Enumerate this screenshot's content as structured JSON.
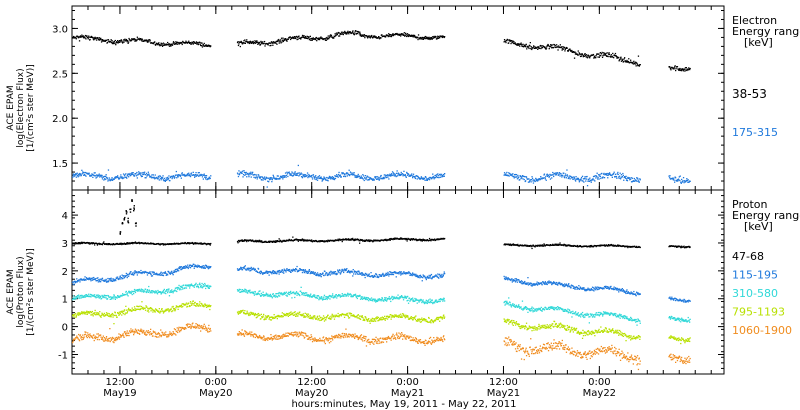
{
  "chart_data": [
    {
      "type": "scatter",
      "ylabel_lines": [
        "ACE EPAM",
        "log(Electron Flux)",
        "[1/(cm²s ster MeV)]"
      ],
      "ylim": [
        1.2,
        3.25
      ],
      "yticks": [
        "1.5",
        "2.0",
        "2.5",
        "3.0"
      ],
      "legend_title_lines": [
        "Electron",
        "Energy ranges",
        "[keV]"
      ],
      "legend_placement": "right",
      "series": [
        {
          "name": "38-53",
          "color": "#000000",
          "segments": [
            {
              "x": [
                0.0,
                0.72
              ],
              "level": 2.9,
              "slope": -0.08,
              "noise": 0.03
            },
            {
              "x": [
                0.86,
                1.5
              ],
              "level": 2.83,
              "slope": 0.12,
              "noise": 0.035
            },
            {
              "x": [
                1.5,
                1.94
              ],
              "level": 2.93,
              "slope": -0.02,
              "noise": 0.03
            },
            {
              "x": [
                2.25,
                2.5
              ],
              "level": 2.85,
              "slope": -0.06,
              "noise": 0.035
            },
            {
              "x": [
                2.5,
                2.96
              ],
              "level": 2.79,
              "slope": -0.16,
              "noise": 0.04
            },
            {
              "x": [
                3.11,
                3.22
              ],
              "level": 2.56,
              "slope": 0.02,
              "noise": 0.04
            }
          ]
        },
        {
          "name": "175-315",
          "color": "#1e78dc",
          "segments": [
            {
              "x": [
                0.0,
                0.72
              ],
              "level": 1.36,
              "slope": 0.0,
              "noise": 0.045
            },
            {
              "x": [
                0.86,
                1.94
              ],
              "level": 1.36,
              "slope": 0.0,
              "noise": 0.045
            },
            {
              "x": [
                2.25,
                2.96
              ],
              "level": 1.35,
              "slope": 0.0,
              "noise": 0.05
            },
            {
              "x": [
                3.11,
                3.22
              ],
              "level": 1.33,
              "slope": 0.0,
              "noise": 0.05
            }
          ]
        }
      ]
    },
    {
      "type": "scatter",
      "ylabel_lines": [
        "ACE EPAM",
        "log(Proton Flux)",
        "[1/(cm²s ster MeV)]"
      ],
      "ylim": [
        -1.7,
        4.9
      ],
      "yticks": [
        "-1",
        "0",
        "1",
        "2",
        "3",
        "4"
      ],
      "legend_title_lines": [
        "Proton",
        "Energy ranges",
        "[keV]"
      ],
      "legend_placement": "right",
      "series": [
        {
          "name": "47-68",
          "color": "#000000",
          "segments": [
            {
              "x": [
                0.0,
                0.72
              ],
              "level": 3.0,
              "slope": 0.0,
              "noise": 0.04
            },
            {
              "x": [
                0.86,
                1.94
              ],
              "level": 3.08,
              "slope": 0.08,
              "noise": 0.05
            },
            {
              "x": [
                2.25,
                2.96
              ],
              "level": 2.95,
              "slope": -0.05,
              "noise": 0.04
            },
            {
              "x": [
                3.11,
                3.22
              ],
              "level": 2.9,
              "slope": 0.0,
              "noise": 0.04
            }
          ]
        },
        {
          "name": "115-195",
          "color": "#1e78dc",
          "segments": [
            {
              "x": [
                0.0,
                0.72
              ],
              "level": 1.6,
              "slope": 0.6,
              "noise": 0.12
            },
            {
              "x": [
                0.86,
                1.94
              ],
              "level": 2.05,
              "slope": -0.2,
              "noise": 0.12
            },
            {
              "x": [
                2.25,
                2.96
              ],
              "level": 1.7,
              "slope": -0.45,
              "noise": 0.1
            },
            {
              "x": [
                3.11,
                3.22
              ],
              "level": 1.0,
              "slope": 0.0,
              "noise": 0.1
            }
          ]
        },
        {
          "name": "310-580",
          "color": "#30d8d8",
          "segments": [
            {
              "x": [
                0.0,
                0.72
              ],
              "level": 1.0,
              "slope": 0.5,
              "noise": 0.12
            },
            {
              "x": [
                0.86,
                1.94
              ],
              "level": 1.25,
              "slope": -0.3,
              "noise": 0.12
            },
            {
              "x": [
                2.25,
                2.96
              ],
              "level": 0.8,
              "slope": -0.5,
              "noise": 0.12
            },
            {
              "x": [
                3.11,
                3.22
              ],
              "level": 0.3,
              "slope": 0.0,
              "noise": 0.1
            }
          ]
        },
        {
          "name": "795-1193",
          "color": "#b8e000",
          "segments": [
            {
              "x": [
                0.0,
                0.72
              ],
              "level": 0.4,
              "slope": 0.4,
              "noise": 0.14
            },
            {
              "x": [
                0.86,
                1.94
              ],
              "level": 0.45,
              "slope": -0.15,
              "noise": 0.14
            },
            {
              "x": [
                2.25,
                2.96
              ],
              "level": 0.15,
              "slope": -0.45,
              "noise": 0.15
            },
            {
              "x": [
                3.11,
                3.22
              ],
              "level": -0.4,
              "slope": 0.0,
              "noise": 0.12
            }
          ]
        },
        {
          "name": "1060-1900",
          "color": "#f08c1e",
          "segments": [
            {
              "x": [
                0.0,
                0.72
              ],
              "level": -0.45,
              "slope": 0.45,
              "noise": 0.18
            },
            {
              "x": [
                0.86,
                1.94
              ],
              "level": -0.3,
              "slope": -0.15,
              "noise": 0.16
            },
            {
              "x": [
                2.25,
                2.96
              ],
              "level": -0.65,
              "slope": -0.35,
              "noise": 0.25
            },
            {
              "x": [
                3.11,
                3.22
              ],
              "level": -1.1,
              "slope": 0.0,
              "noise": 0.2
            }
          ]
        }
      ],
      "spike": {
        "series": "47-68",
        "x": [
          0.25,
          0.33
        ],
        "points": [
          [
            0.25,
            3.4
          ],
          [
            0.26,
            3.7
          ],
          [
            0.27,
            3.9
          ],
          [
            0.28,
            4.1
          ],
          [
            0.29,
            3.8
          ],
          [
            0.3,
            4.2
          ],
          [
            0.31,
            4.5
          ],
          [
            0.32,
            4.3
          ],
          [
            0.33,
            3.7
          ]
        ]
      }
    }
  ],
  "x_axis": {
    "xlim": [
      0.0,
      3.4
    ],
    "major_ticks": [
      {
        "x": 0.25,
        "label": "12:00",
        "date": "May19"
      },
      {
        "x": 0.75,
        "label": "0:00",
        "date": "May20"
      },
      {
        "x": 1.25,
        "label": "12:00",
        "date": "May20"
      },
      {
        "x": 1.75,
        "label": "0:00",
        "date": "May21"
      },
      {
        "x": 2.25,
        "label": "12:00",
        "date": "May21"
      },
      {
        "x": 2.75,
        "label": "0:00",
        "date": "May22"
      }
    ],
    "xlabel": "hours:minutes, May 19, 2011 - May 22, 2011"
  }
}
